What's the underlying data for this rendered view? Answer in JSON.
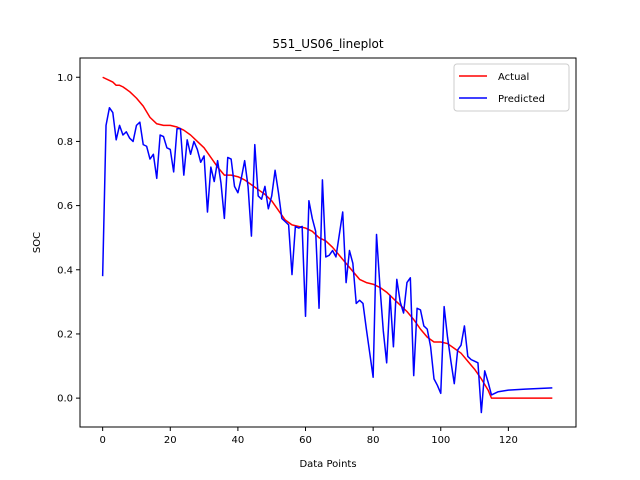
{
  "chart_data": {
    "type": "line",
    "title": "551_US06_lineplot",
    "xlabel": "Data Points",
    "ylabel": "SOC",
    "xlim": [
      -6.7,
      140
    ],
    "ylim": [
      -0.09,
      1.06
    ],
    "xticks": [
      0,
      20,
      40,
      60,
      80,
      100,
      120
    ],
    "yticks": [
      0.0,
      0.2,
      0.4,
      0.6,
      0.8,
      1.0
    ],
    "ytick_labels": [
      "0.0",
      "0.2",
      "0.4",
      "0.6",
      "0.8",
      "1.0"
    ],
    "grid": false,
    "legend_position": "top-right",
    "series": [
      {
        "name": "Actual",
        "color": "#ff0000",
        "points": [
          [
            0,
            1.0
          ],
          [
            2,
            0.99
          ],
          [
            3,
            0.985
          ],
          [
            4,
            0.975
          ],
          [
            5,
            0.975
          ],
          [
            6,
            0.97
          ],
          [
            8,
            0.955
          ],
          [
            10,
            0.935
          ],
          [
            12,
            0.91
          ],
          [
            14,
            0.875
          ],
          [
            16,
            0.855
          ],
          [
            18,
            0.85
          ],
          [
            20,
            0.85
          ],
          [
            22,
            0.845
          ],
          [
            24,
            0.835
          ],
          [
            26,
            0.82
          ],
          [
            28,
            0.8
          ],
          [
            30,
            0.78
          ],
          [
            32,
            0.75
          ],
          [
            34,
            0.72
          ],
          [
            36,
            0.695
          ],
          [
            38,
            0.695
          ],
          [
            40,
            0.69
          ],
          [
            42,
            0.68
          ],
          [
            44,
            0.665
          ],
          [
            46,
            0.65
          ],
          [
            48,
            0.635
          ],
          [
            50,
            0.615
          ],
          [
            52,
            0.585
          ],
          [
            54,
            0.555
          ],
          [
            56,
            0.54
          ],
          [
            58,
            0.535
          ],
          [
            60,
            0.53
          ],
          [
            62,
            0.52
          ],
          [
            64,
            0.5
          ],
          [
            66,
            0.49
          ],
          [
            68,
            0.47
          ],
          [
            70,
            0.445
          ],
          [
            72,
            0.42
          ],
          [
            74,
            0.395
          ],
          [
            76,
            0.37
          ],
          [
            78,
            0.36
          ],
          [
            80,
            0.355
          ],
          [
            82,
            0.345
          ],
          [
            84,
            0.33
          ],
          [
            86,
            0.31
          ],
          [
            88,
            0.29
          ],
          [
            90,
            0.27
          ],
          [
            92,
            0.245
          ],
          [
            94,
            0.215
          ],
          [
            96,
            0.19
          ],
          [
            98,
            0.175
          ],
          [
            100,
            0.175
          ],
          [
            102,
            0.17
          ],
          [
            104,
            0.155
          ],
          [
            106,
            0.14
          ],
          [
            108,
            0.115
          ],
          [
            110,
            0.09
          ],
          [
            112,
            0.06
          ],
          [
            114,
            0.025
          ],
          [
            115,
            0.0
          ],
          [
            120,
            0.0
          ],
          [
            125,
            0.0
          ],
          [
            133,
            0.0
          ]
        ]
      },
      {
        "name": "Predicted",
        "color": "#0000ff",
        "points": [
          [
            0,
            0.38
          ],
          [
            1,
            0.85
          ],
          [
            2,
            0.905
          ],
          [
            3,
            0.89
          ],
          [
            4,
            0.805
          ],
          [
            5,
            0.85
          ],
          [
            6,
            0.82
          ],
          [
            7,
            0.83
          ],
          [
            8,
            0.81
          ],
          [
            9,
            0.8
          ],
          [
            10,
            0.85
          ],
          [
            11,
            0.86
          ],
          [
            12,
            0.79
          ],
          [
            13,
            0.785
          ],
          [
            14,
            0.745
          ],
          [
            15,
            0.76
          ],
          [
            16,
            0.685
          ],
          [
            17,
            0.82
          ],
          [
            18,
            0.815
          ],
          [
            19,
            0.78
          ],
          [
            20,
            0.775
          ],
          [
            21,
            0.705
          ],
          [
            22,
            0.84
          ],
          [
            23,
            0.84
          ],
          [
            24,
            0.695
          ],
          [
            25,
            0.805
          ],
          [
            26,
            0.76
          ],
          [
            27,
            0.8
          ],
          [
            28,
            0.775
          ],
          [
            29,
            0.735
          ],
          [
            30,
            0.755
          ],
          [
            31,
            0.58
          ],
          [
            32,
            0.72
          ],
          [
            33,
            0.675
          ],
          [
            34,
            0.74
          ],
          [
            35,
            0.67
          ],
          [
            36,
            0.56
          ],
          [
            37,
            0.75
          ],
          [
            38,
            0.745
          ],
          [
            39,
            0.66
          ],
          [
            40,
            0.64
          ],
          [
            41,
            0.685
          ],
          [
            42,
            0.74
          ],
          [
            43,
            0.66
          ],
          [
            44,
            0.505
          ],
          [
            45,
            0.79
          ],
          [
            46,
            0.63
          ],
          [
            47,
            0.62
          ],
          [
            48,
            0.66
          ],
          [
            49,
            0.59
          ],
          [
            50,
            0.63
          ],
          [
            51,
            0.71
          ],
          [
            52,
            0.64
          ],
          [
            53,
            0.56
          ],
          [
            54,
            0.55
          ],
          [
            55,
            0.54
          ],
          [
            56,
            0.385
          ],
          [
            57,
            0.535
          ],
          [
            58,
            0.53
          ],
          [
            59,
            0.535
          ],
          [
            60,
            0.255
          ],
          [
            61,
            0.615
          ],
          [
            62,
            0.56
          ],
          [
            63,
            0.52
          ],
          [
            64,
            0.28
          ],
          [
            65,
            0.68
          ],
          [
            66,
            0.44
          ],
          [
            67,
            0.445
          ],
          [
            68,
            0.46
          ],
          [
            69,
            0.44
          ],
          [
            70,
            0.51
          ],
          [
            71,
            0.58
          ],
          [
            72,
            0.36
          ],
          [
            73,
            0.46
          ],
          [
            74,
            0.42
          ],
          [
            75,
            0.295
          ],
          [
            76,
            0.305
          ],
          [
            77,
            0.295
          ],
          [
            78,
            0.215
          ],
          [
            79,
            0.14
          ],
          [
            80,
            0.065
          ],
          [
            81,
            0.51
          ],
          [
            82,
            0.35
          ],
          [
            83,
            0.21
          ],
          [
            84,
            0.11
          ],
          [
            85,
            0.32
          ],
          [
            86,
            0.16
          ],
          [
            87,
            0.37
          ],
          [
            88,
            0.3
          ],
          [
            89,
            0.265
          ],
          [
            90,
            0.36
          ],
          [
            91,
            0.375
          ],
          [
            92,
            0.07
          ],
          [
            93,
            0.28
          ],
          [
            94,
            0.275
          ],
          [
            95,
            0.225
          ],
          [
            96,
            0.215
          ],
          [
            97,
            0.16
          ],
          [
            98,
            0.06
          ],
          [
            99,
            0.04
          ],
          [
            100,
            0.015
          ],
          [
            101,
            0.285
          ],
          [
            102,
            0.19
          ],
          [
            103,
            0.115
          ],
          [
            104,
            0.045
          ],
          [
            105,
            0.15
          ],
          [
            106,
            0.165
          ],
          [
            107,
            0.225
          ],
          [
            108,
            0.13
          ],
          [
            109,
            0.12
          ],
          [
            110,
            0.115
          ],
          [
            111,
            0.11
          ],
          [
            112,
            -0.045
          ],
          [
            113,
            0.085
          ],
          [
            114,
            0.05
          ],
          [
            115,
            0.01
          ],
          [
            117,
            0.02
          ],
          [
            120,
            0.025
          ],
          [
            125,
            0.028
          ],
          [
            133,
            0.032
          ]
        ]
      }
    ]
  }
}
